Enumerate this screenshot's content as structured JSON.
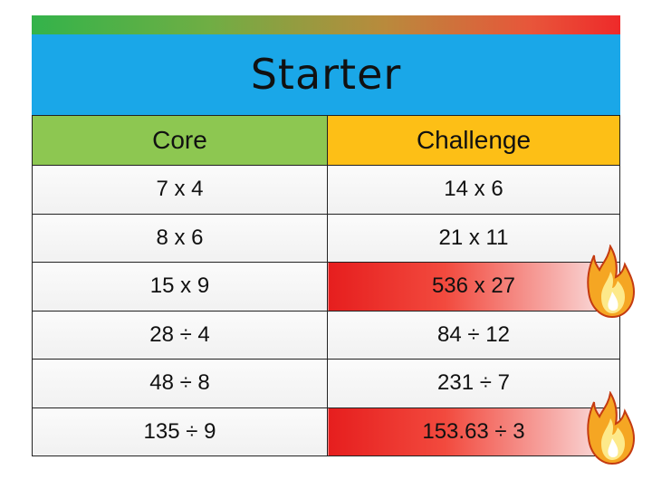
{
  "title": "Starter",
  "headers": {
    "core": "Core",
    "challenge": "Challenge"
  },
  "rows": [
    {
      "core": "7 x 4",
      "challenge": "14 x 6",
      "hot": false
    },
    {
      "core": "8 x 6",
      "challenge": "21 x 11",
      "hot": false
    },
    {
      "core": "15 x 9",
      "challenge": "536 x 27",
      "hot": true
    },
    {
      "core": "28 ÷ 4",
      "challenge": "84 ÷ 12",
      "hot": false
    },
    {
      "core": "48 ÷ 8",
      "challenge": "231 ÷ 7",
      "hot": false
    },
    {
      "core": "135 ÷ 9",
      "challenge": "153.63  ÷ 3",
      "hot": true
    }
  ],
  "colors": {
    "title_band": "#1aa7e8",
    "core_header": "#8dc751",
    "challenge_header": "#fdbf16",
    "hot_row": "#e61e1e"
  },
  "icons": [
    "flame-icon"
  ]
}
